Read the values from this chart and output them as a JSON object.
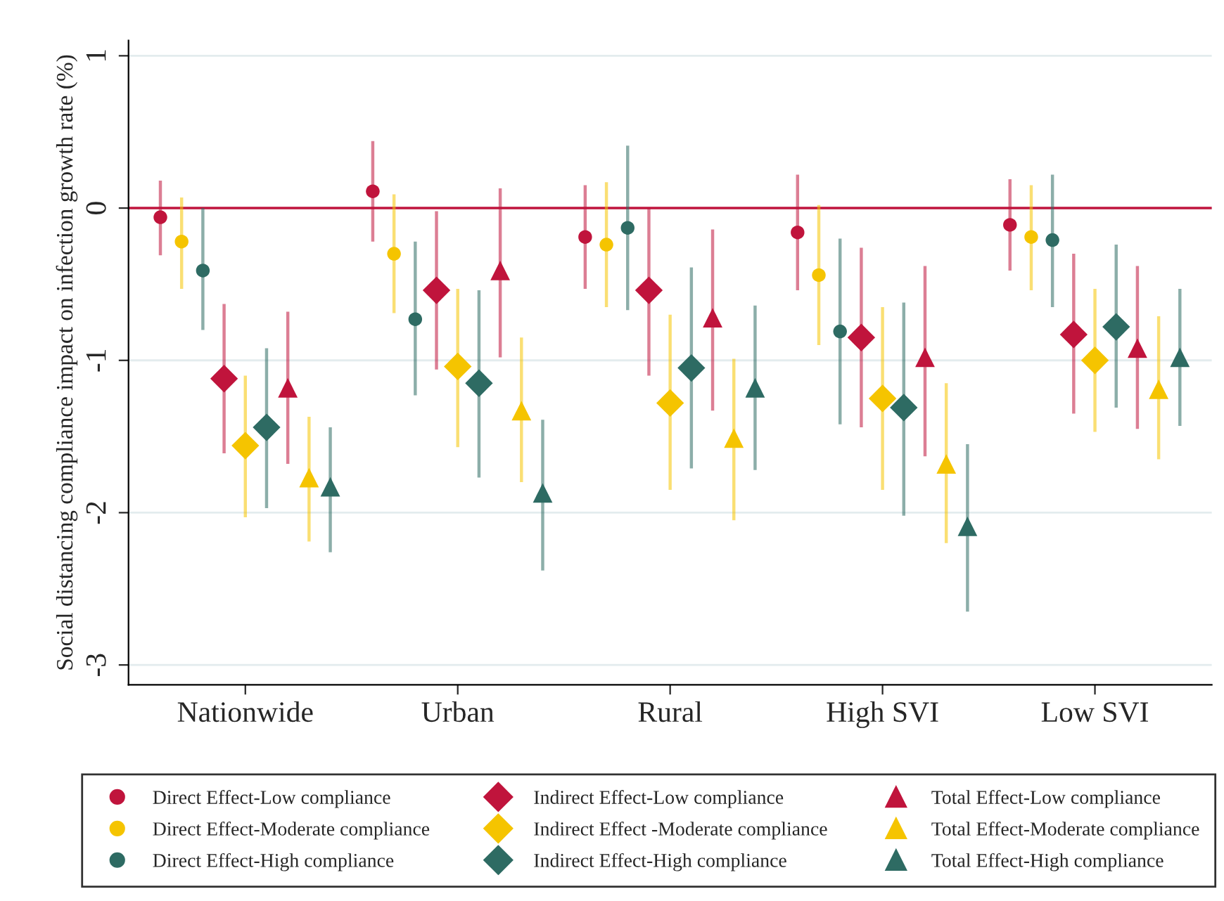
{
  "chart_data": {
    "type": "scatter",
    "ylabel": "Social distancing compliance impact on infection growth rate (%)",
    "categories": [
      "Nationwide",
      "Urban",
      "Rural",
      "High SVI",
      "Low SVI"
    ],
    "ylim": [
      -3.13,
      1.1
    ],
    "yticks": [
      1,
      0,
      -1,
      -2,
      -3
    ],
    "grid": "y",
    "legend": "bottom",
    "ref_lines": [
      {
        "axis": "y",
        "value": 0,
        "color": "#c0143c"
      }
    ],
    "series": [
      {
        "name": "Direct Effect-Low compliance",
        "color": "#c0143c",
        "marker": "circle",
        "values": [
          -0.06,
          0.11,
          -0.19,
          -0.16,
          -0.11
        ],
        "errors": [
          [
            -0.31,
            0.18
          ],
          [
            -0.22,
            0.44
          ],
          [
            -0.53,
            0.15
          ],
          [
            -0.54,
            0.22
          ],
          [
            -0.41,
            0.19
          ]
        ]
      },
      {
        "name": "Direct Effect-Moderate compliance",
        "color": "#f5c400",
        "marker": "circle",
        "values": [
          -0.22,
          -0.3,
          -0.24,
          -0.44,
          -0.19
        ],
        "errors": [
          [
            -0.53,
            0.07
          ],
          [
            -0.69,
            0.09
          ],
          [
            -0.65,
            0.17
          ],
          [
            -0.9,
            0.02
          ],
          [
            -0.54,
            0.15
          ]
        ]
      },
      {
        "name": "Direct Effect-High compliance",
        "color": "#2e6b63",
        "marker": "circle",
        "values": [
          -0.41,
          -0.73,
          -0.13,
          -0.81,
          -0.21
        ],
        "errors": [
          [
            -0.8,
            0.0
          ],
          [
            -1.23,
            -0.22
          ],
          [
            -0.67,
            0.41
          ],
          [
            -1.42,
            -0.2
          ],
          [
            -0.65,
            0.22
          ]
        ]
      },
      {
        "name": "Indirect Effect-Low compliance",
        "color": "#c0143c",
        "marker": "diamond",
        "values": [
          -1.12,
          -0.54,
          -0.54,
          -0.85,
          -0.83
        ],
        "errors": [
          [
            -1.61,
            -0.63
          ],
          [
            -1.06,
            -0.02
          ],
          [
            -1.1,
            0.0
          ],
          [
            -1.44,
            -0.26
          ],
          [
            -1.35,
            -0.3
          ]
        ]
      },
      {
        "name": "Indirect Effect -Moderate compliance",
        "color": "#f5c400",
        "marker": "diamond",
        "values": [
          -1.56,
          -1.04,
          -1.28,
          -1.25,
          -1.0
        ],
        "errors": [
          [
            -2.03,
            -1.1
          ],
          [
            -1.57,
            -0.53
          ],
          [
            -1.85,
            -0.7
          ],
          [
            -1.85,
            -0.65
          ],
          [
            -1.47,
            -0.53
          ]
        ]
      },
      {
        "name": "Indirect Effect-High compliance",
        "color": "#2e6b63",
        "marker": "diamond",
        "values": [
          -1.44,
          -1.15,
          -1.05,
          -1.31,
          -0.78
        ],
        "errors": [
          [
            -1.97,
            -0.92
          ],
          [
            -1.77,
            -0.54
          ],
          [
            -1.71,
            -0.39
          ],
          [
            -2.02,
            -0.62
          ],
          [
            -1.31,
            -0.24
          ]
        ]
      },
      {
        "name": "Total Effect-Low compliance",
        "color": "#c0143c",
        "marker": "triangle",
        "values": [
          -1.18,
          -0.41,
          -0.72,
          -0.98,
          -0.92
        ],
        "errors": [
          [
            -1.68,
            -0.68
          ],
          [
            -0.98,
            0.13
          ],
          [
            -1.33,
            -0.14
          ],
          [
            -1.63,
            -0.38
          ],
          [
            -1.45,
            -0.38
          ]
        ]
      },
      {
        "name": "Total Effect-Moderate compliance",
        "color": "#f5c400",
        "marker": "triangle",
        "values": [
          -1.77,
          -1.33,
          -1.51,
          -1.68,
          -1.19
        ],
        "errors": [
          [
            -2.19,
            -1.37
          ],
          [
            -1.8,
            -0.85
          ],
          [
            -2.05,
            -0.99
          ],
          [
            -2.2,
            -1.15
          ],
          [
            -1.65,
            -0.71
          ]
        ]
      },
      {
        "name": "Total Effect-High compliance",
        "color": "#2e6b63",
        "marker": "triangle",
        "values": [
          -1.83,
          -1.87,
          -1.18,
          -2.09,
          -0.98
        ],
        "errors": [
          [
            -2.26,
            -1.44
          ],
          [
            -2.38,
            -1.39
          ],
          [
            -1.72,
            -0.64
          ],
          [
            -2.65,
            -1.55
          ],
          [
            -1.43,
            -0.53
          ]
        ]
      }
    ]
  }
}
